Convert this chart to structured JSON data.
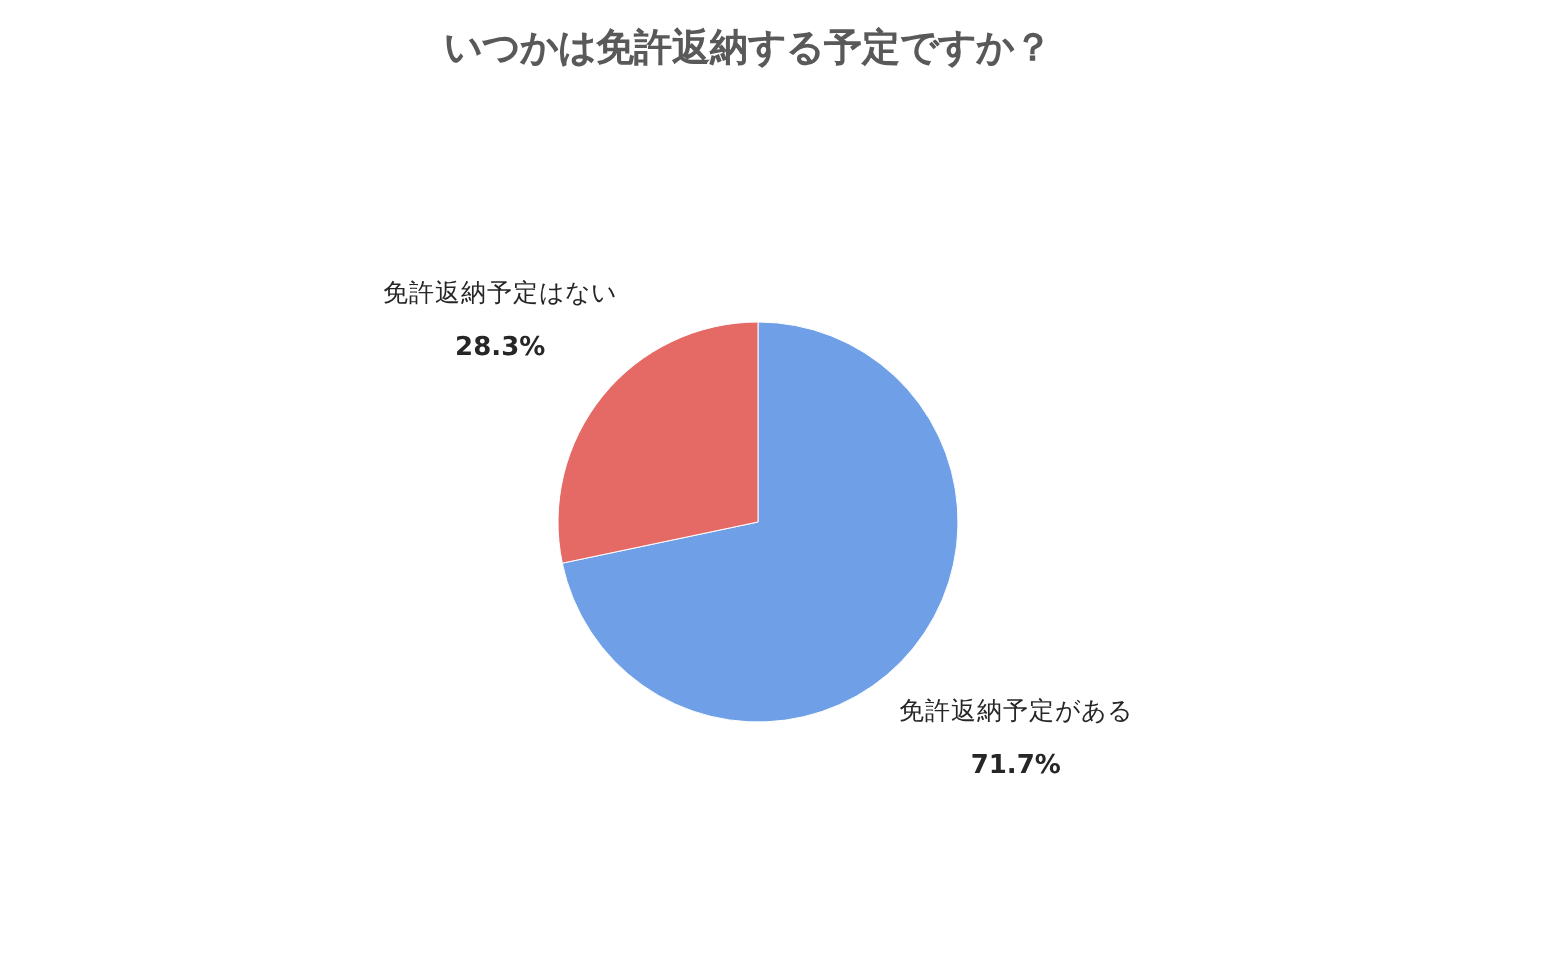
{
  "chart_data": {
    "type": "pie",
    "title": "いつかは免許返納する予定ですか？",
    "categories": [
      "免許返納予定がある",
      "免許返納予定はない"
    ],
    "values": [
      71.7,
      28.3
    ],
    "value_labels": [
      "71.7%",
      "28.3%"
    ],
    "colors": [
      "#6f9fe6",
      "#e56a66"
    ],
    "legend": false
  }
}
